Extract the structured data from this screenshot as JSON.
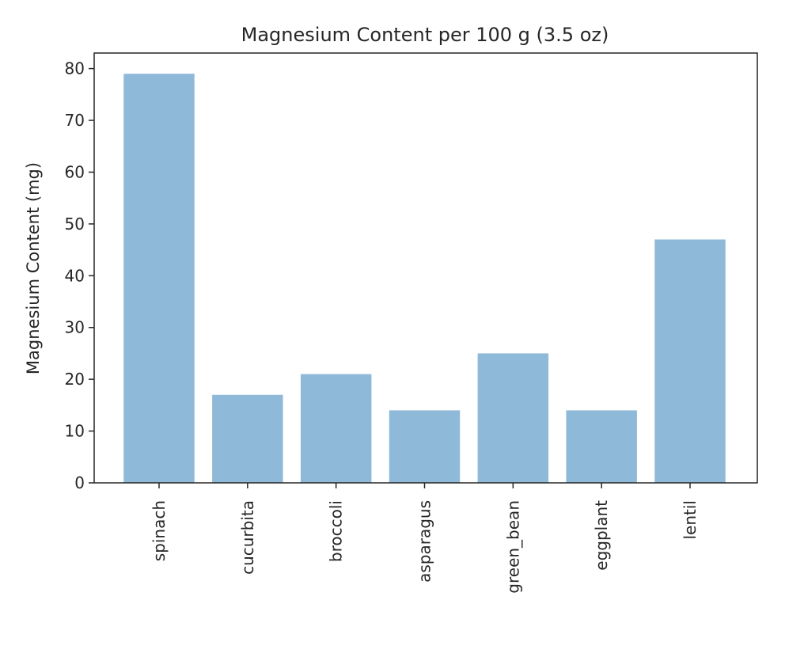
{
  "chart_data": {
    "type": "bar",
    "title": "Magnesium Content per 100 g (3.5 oz)",
    "xlabel": "",
    "ylabel": "Magnesium Content (mg)",
    "categories": [
      "spinach",
      "cucurbita",
      "broccoli",
      "asparagus",
      "green_bean",
      "eggplant",
      "lentil"
    ],
    "values": [
      79,
      17,
      21,
      14,
      25,
      14,
      47
    ],
    "ylim": [
      0,
      83
    ],
    "yticks": [
      0,
      10,
      20,
      30,
      40,
      50,
      60,
      70,
      80
    ],
    "grid": false,
    "legend": "none",
    "bar_color": "#8fb9d9",
    "axis_color": "#262626"
  }
}
